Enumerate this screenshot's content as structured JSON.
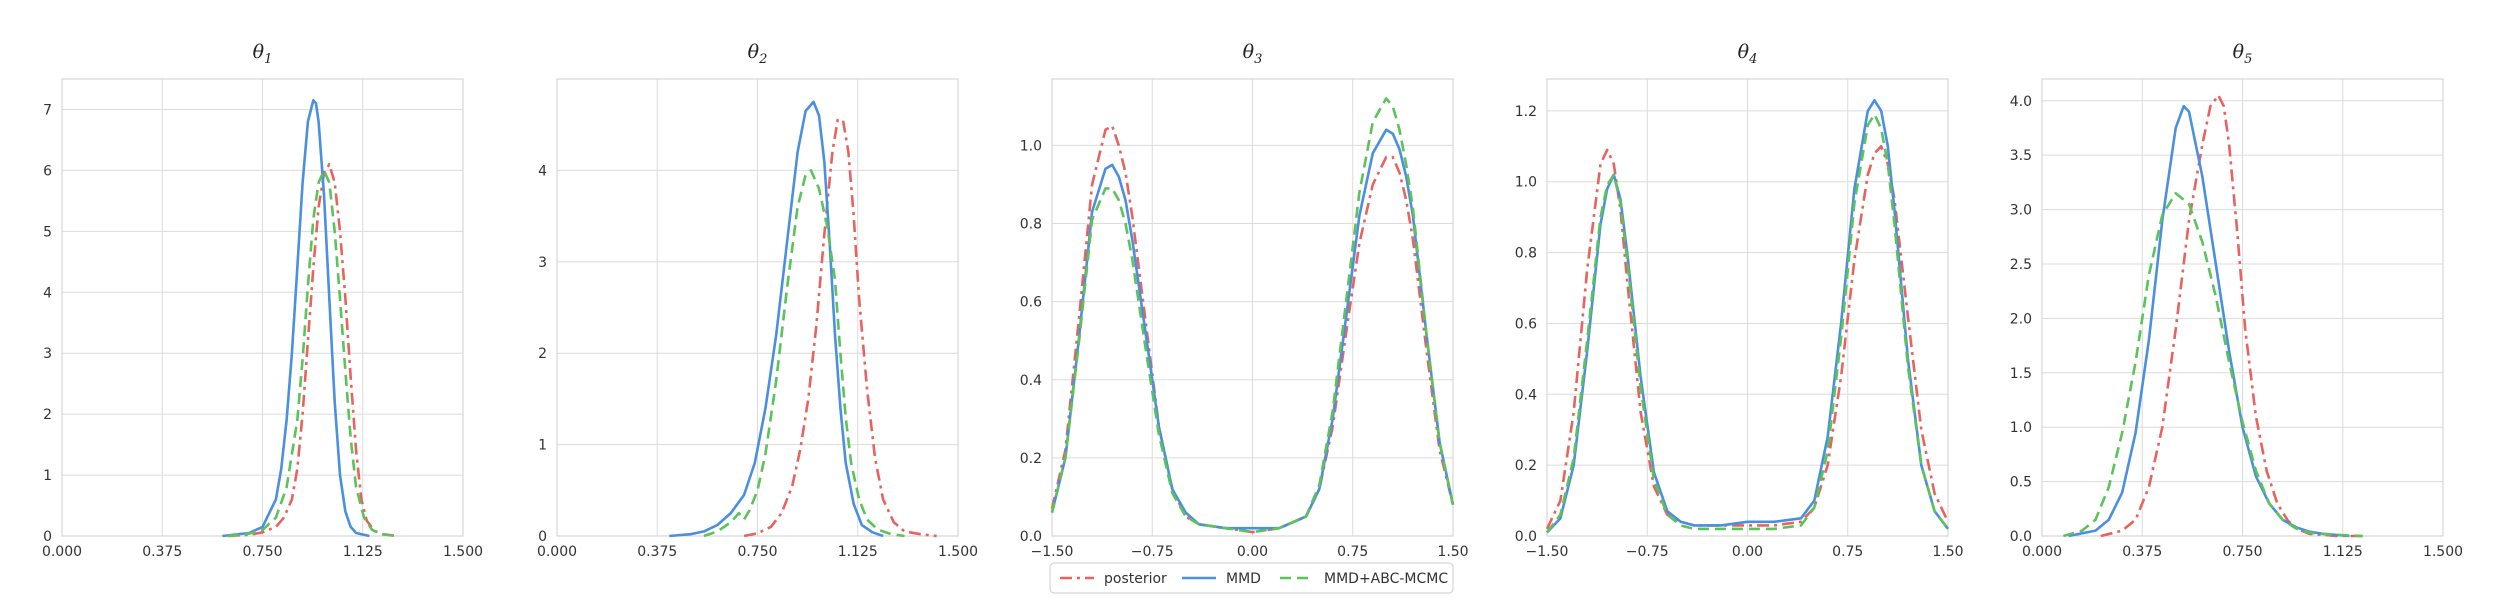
{
  "chart_data": {
    "type": "line",
    "grid": true,
    "legend": {
      "placement": "bottom-center",
      "entries": [
        {
          "name": "posterior",
          "color": "#e8635f",
          "style": "dashdot"
        },
        {
          "name": "MMD",
          "color": "#4a8fe0",
          "style": "solid"
        },
        {
          "name": "MMD+ABC-MCMC",
          "color": "#5cc25a",
          "style": "dashed"
        }
      ]
    },
    "panels": [
      {
        "title_base": "θ",
        "title_sub": "1",
        "xlim": [
          0,
          1.5
        ],
        "ylim": [
          0,
          7.5
        ],
        "xticks": [
          "0.000",
          "0.375",
          "0.750",
          "1.125",
          "1.500"
        ],
        "yticks": [
          "0",
          "1",
          "2",
          "3",
          "4",
          "5",
          "6",
          "7"
        ],
        "series": [
          {
            "x": [
              0.62,
              0.7,
              0.75,
              0.8,
              0.83,
              0.86,
              0.88,
              0.9,
              0.92,
              0.94,
              0.96,
              0.98,
              1.0,
              1.02,
              1.04,
              1.06,
              1.08,
              1.1,
              1.12,
              1.14,
              1.17,
              1.2,
              1.25
            ],
            "y": [
              0.0,
              0.02,
              0.06,
              0.15,
              0.3,
              0.6,
              1.1,
              2.0,
              3.2,
              4.4,
              5.4,
              5.95,
              6.1,
              5.8,
              5.0,
              3.9,
              2.6,
              1.4,
              0.6,
              0.25,
              0.08,
              0.03,
              0.0
            ]
          },
          {
            "x": [
              0.6,
              0.7,
              0.75,
              0.8,
              0.82,
              0.84,
              0.86,
              0.88,
              0.9,
              0.92,
              0.94,
              0.95,
              0.96,
              0.98,
              1.0,
              1.02,
              1.04,
              1.06,
              1.08,
              1.1,
              1.15
            ],
            "y": [
              0.0,
              0.05,
              0.15,
              0.6,
              1.1,
              1.9,
              3.0,
              4.4,
              5.8,
              6.8,
              7.15,
              7.1,
              6.8,
              5.6,
              3.9,
              2.2,
              1.0,
              0.4,
              0.15,
              0.05,
              0.0
            ]
          },
          {
            "x": [
              0.62,
              0.7,
              0.75,
              0.8,
              0.84,
              0.88,
              0.9,
              0.92,
              0.94,
              0.96,
              0.98,
              1.0,
              1.02,
              1.04,
              1.06,
              1.08,
              1.1,
              1.13,
              1.16,
              1.2,
              1.25
            ],
            "y": [
              0.0,
              0.04,
              0.1,
              0.3,
              0.8,
              1.9,
              2.9,
              4.1,
              5.2,
              5.8,
              6.0,
              5.8,
              5.0,
              3.9,
              2.7,
              1.6,
              0.8,
              0.3,
              0.1,
              0.03,
              0.0
            ]
          }
        ]
      },
      {
        "title_base": "θ",
        "title_sub": "2",
        "xlim": [
          0,
          1.5
        ],
        "ylim": [
          0,
          5.0
        ],
        "xticks": [
          "0.000",
          "0.375",
          "0.750",
          "1.125",
          "1.500"
        ],
        "yticks": [
          "0",
          "1",
          "2",
          "3",
          "4"
        ],
        "series": [
          {
            "x": [
              0.7,
              0.75,
              0.8,
              0.84,
              0.88,
              0.91,
              0.94,
              0.97,
              1.0,
              1.03,
              1.05,
              1.07,
              1.09,
              1.11,
              1.13,
              1.16,
              1.19,
              1.22,
              1.26,
              1.3,
              1.36,
              1.42
            ],
            "y": [
              0.0,
              0.03,
              0.1,
              0.25,
              0.55,
              0.95,
              1.5,
              2.3,
              3.3,
              4.2,
              4.55,
              4.55,
              4.2,
              3.5,
              2.6,
              1.6,
              0.85,
              0.4,
              0.15,
              0.05,
              0.02,
              0.0
            ]
          },
          {
            "x": [
              0.42,
              0.5,
              0.55,
              0.6,
              0.65,
              0.7,
              0.74,
              0.78,
              0.82,
              0.86,
              0.9,
              0.93,
              0.96,
              0.98,
              1.0,
              1.02,
              1.04,
              1.06,
              1.08,
              1.11,
              1.14,
              1.18,
              1.22
            ],
            "y": [
              0.0,
              0.02,
              0.05,
              0.12,
              0.25,
              0.45,
              0.8,
              1.4,
              2.2,
              3.2,
              4.2,
              4.65,
              4.75,
              4.6,
              4.1,
              3.2,
              2.2,
              1.4,
              0.8,
              0.35,
              0.12,
              0.04,
              0.0
            ]
          },
          {
            "x": [
              0.55,
              0.6,
              0.65,
              0.68,
              0.7,
              0.72,
              0.75,
              0.78,
              0.82,
              0.86,
              0.9,
              0.93,
              0.95,
              0.98,
              1.01,
              1.04,
              1.06,
              1.08,
              1.1,
              1.13,
              1.16,
              1.2,
              1.25,
              1.3
            ],
            "y": [
              0.0,
              0.05,
              0.15,
              0.25,
              0.18,
              0.28,
              0.5,
              0.9,
              1.7,
              2.7,
              3.6,
              3.95,
              4.0,
              3.8,
              3.4,
              2.8,
              2.0,
              1.3,
              0.8,
              0.4,
              0.18,
              0.07,
              0.02,
              0.0
            ]
          }
        ]
      },
      {
        "title_base": "θ",
        "title_sub": "3",
        "xlim": [
          -1.5,
          1.5
        ],
        "ylim": [
          0,
          1.17
        ],
        "xticks": [
          "−1.50",
          "−0.75",
          "0.00",
          "0.75",
          "1.50"
        ],
        "yticks": [
          "0.0",
          "0.2",
          "0.4",
          "0.6",
          "0.8",
          "1.0"
        ],
        "series": [
          {
            "x": [
              -1.5,
              -1.4,
              -1.3,
              -1.2,
              -1.1,
              -1.05,
              -1.0,
              -0.95,
              -0.9,
              -0.8,
              -0.7,
              -0.6,
              -0.5,
              -0.4,
              -0.2,
              0.0,
              0.2,
              0.4,
              0.5,
              0.6,
              0.7,
              0.8,
              0.9,
              1.0,
              1.05,
              1.1,
              1.15,
              1.2,
              1.3,
              1.4,
              1.5
            ],
            "y": [
              0.07,
              0.22,
              0.55,
              0.9,
              1.04,
              1.05,
              1.0,
              0.93,
              0.82,
              0.55,
              0.28,
              0.12,
              0.05,
              0.03,
              0.02,
              0.01,
              0.02,
              0.05,
              0.12,
              0.28,
              0.52,
              0.75,
              0.9,
              0.97,
              0.97,
              0.93,
              0.86,
              0.76,
              0.48,
              0.22,
              0.08
            ]
          },
          {
            "x": [
              -1.5,
              -1.4,
              -1.3,
              -1.2,
              -1.1,
              -1.05,
              -1.0,
              -0.95,
              -0.9,
              -0.8,
              -0.7,
              -0.6,
              -0.5,
              -0.4,
              -0.2,
              0.0,
              0.2,
              0.4,
              0.5,
              0.6,
              0.7,
              0.8,
              0.9,
              1.0,
              1.05,
              1.1,
              1.15,
              1.2,
              1.3,
              1.4,
              1.5
            ],
            "y": [
              0.06,
              0.2,
              0.5,
              0.83,
              0.94,
              0.95,
              0.92,
              0.86,
              0.76,
              0.52,
              0.28,
              0.12,
              0.06,
              0.03,
              0.02,
              0.02,
              0.02,
              0.05,
              0.12,
              0.3,
              0.56,
              0.82,
              0.98,
              1.04,
              1.03,
              0.99,
              0.92,
              0.82,
              0.52,
              0.24,
              0.08
            ]
          },
          {
            "x": [
              -1.5,
              -1.4,
              -1.3,
              -1.2,
              -1.1,
              -1.05,
              -1.0,
              -0.95,
              -0.9,
              -0.8,
              -0.7,
              -0.6,
              -0.5,
              -0.4,
              -0.2,
              0.0,
              0.2,
              0.4,
              0.5,
              0.6,
              0.7,
              0.8,
              0.9,
              1.0,
              1.05,
              1.1,
              1.15,
              1.2,
              1.3,
              1.4,
              1.5
            ],
            "y": [
              0.06,
              0.2,
              0.49,
              0.81,
              0.89,
              0.89,
              0.86,
              0.8,
              0.71,
              0.48,
              0.26,
              0.11,
              0.05,
              0.03,
              0.02,
              0.01,
              0.02,
              0.05,
              0.13,
              0.32,
              0.6,
              0.88,
              1.06,
              1.12,
              1.1,
              1.04,
              0.95,
              0.84,
              0.52,
              0.24,
              0.08
            ]
          }
        ]
      },
      {
        "title_base": "θ",
        "title_sub": "4",
        "xlim": [
          -1.5,
          1.5
        ],
        "ylim": [
          0,
          1.29
        ],
        "xticks": [
          "−1.50",
          "−0.75",
          "0.00",
          "0.75",
          "1.50"
        ],
        "yticks": [
          "0.0",
          "0.2",
          "0.4",
          "0.6",
          "0.8",
          "1.0",
          "1.2"
        ],
        "series": [
          {
            "x": [
              -1.5,
              -1.4,
              -1.3,
              -1.2,
              -1.1,
              -1.05,
              -1.0,
              -0.95,
              -0.9,
              -0.8,
              -0.7,
              -0.6,
              -0.5,
              -0.4,
              -0.2,
              0.0,
              0.2,
              0.4,
              0.5,
              0.6,
              0.7,
              0.8,
              0.9,
              0.95,
              1.0,
              1.05,
              1.1,
              1.2,
              1.3,
              1.4,
              1.5
            ],
            "y": [
              0.02,
              0.1,
              0.35,
              0.75,
              1.05,
              1.09,
              1.05,
              0.92,
              0.72,
              0.35,
              0.14,
              0.06,
              0.04,
              0.03,
              0.03,
              0.03,
              0.03,
              0.04,
              0.08,
              0.2,
              0.45,
              0.78,
              1.02,
              1.08,
              1.1,
              1.05,
              0.95,
              0.62,
              0.3,
              0.12,
              0.04
            ]
          },
          {
            "x": [
              -1.5,
              -1.4,
              -1.3,
              -1.2,
              -1.1,
              -1.05,
              -1.0,
              -0.95,
              -0.9,
              -0.8,
              -0.7,
              -0.6,
              -0.5,
              -0.4,
              -0.2,
              0.0,
              0.2,
              0.4,
              0.5,
              0.6,
              0.7,
              0.8,
              0.9,
              0.95,
              1.0,
              1.05,
              1.1,
              1.2,
              1.3,
              1.4,
              1.5
            ],
            "y": [
              0.01,
              0.05,
              0.2,
              0.52,
              0.88,
              0.98,
              1.02,
              0.95,
              0.8,
              0.45,
              0.18,
              0.07,
              0.04,
              0.03,
              0.03,
              0.04,
              0.04,
              0.05,
              0.1,
              0.28,
              0.6,
              0.98,
              1.2,
              1.23,
              1.2,
              1.1,
              0.92,
              0.5,
              0.2,
              0.07,
              0.02
            ]
          },
          {
            "x": [
              -1.5,
              -1.4,
              -1.3,
              -1.2,
              -1.1,
              -1.05,
              -1.0,
              -0.95,
              -0.9,
              -0.8,
              -0.7,
              -0.6,
              -0.5,
              -0.4,
              -0.2,
              0.0,
              0.2,
              0.4,
              0.5,
              0.6,
              0.7,
              0.8,
              0.9,
              0.95,
              1.0,
              1.05,
              1.1,
              1.2,
              1.3,
              1.4,
              1.5
            ],
            "y": [
              0.01,
              0.06,
              0.22,
              0.55,
              0.9,
              0.99,
              1.02,
              0.94,
              0.78,
              0.42,
              0.16,
              0.06,
              0.03,
              0.02,
              0.02,
              0.02,
              0.02,
              0.03,
              0.08,
              0.24,
              0.56,
              0.94,
              1.16,
              1.19,
              1.15,
              1.05,
              0.88,
              0.48,
              0.2,
              0.07,
              0.02
            ]
          }
        ]
      },
      {
        "title_base": "θ",
        "title_sub": "5",
        "xlim": [
          0,
          1.5
        ],
        "ylim": [
          0,
          4.2
        ],
        "xticks": [
          "0.000",
          "0.375",
          "0.750",
          "1.125",
          "1.500"
        ],
        "yticks": [
          "0.0",
          "0.5",
          "1.0",
          "1.5",
          "2.0",
          "2.5",
          "3.0",
          "3.5",
          "4.0"
        ],
        "series": [
          {
            "x": [
              0.22,
              0.3,
              0.35,
              0.4,
              0.45,
              0.5,
              0.55,
              0.6,
              0.63,
              0.66,
              0.68,
              0.7,
              0.73,
              0.76,
              0.8,
              0.84,
              0.88,
              0.92,
              0.96,
              1.0,
              1.1,
              1.2
            ],
            "y": [
              0.0,
              0.05,
              0.15,
              0.45,
              1.0,
              1.9,
              2.9,
              3.6,
              3.95,
              4.05,
              3.95,
              3.6,
              2.8,
              1.9,
              1.1,
              0.6,
              0.3,
              0.14,
              0.06,
              0.02,
              0.0,
              0.0
            ]
          },
          {
            "x": [
              0.1,
              0.2,
              0.25,
              0.3,
              0.35,
              0.4,
              0.45,
              0.5,
              0.53,
              0.55,
              0.6,
              0.65,
              0.7,
              0.75,
              0.8,
              0.85,
              0.9,
              0.95,
              1.0,
              1.05,
              1.15
            ],
            "y": [
              0.0,
              0.05,
              0.15,
              0.4,
              0.95,
              1.8,
              2.9,
              3.75,
              3.95,
              3.9,
              3.3,
              2.5,
              1.7,
              1.0,
              0.55,
              0.3,
              0.15,
              0.08,
              0.04,
              0.02,
              0.0
            ]
          },
          {
            "x": [
              0.08,
              0.15,
              0.2,
              0.25,
              0.3,
              0.35,
              0.4,
              0.45,
              0.5,
              0.55,
              0.6,
              0.65,
              0.7,
              0.75,
              0.8,
              0.85,
              0.9,
              0.95,
              1.0,
              1.1,
              1.2
            ],
            "y": [
              0.0,
              0.05,
              0.15,
              0.45,
              0.95,
              1.6,
              2.4,
              2.95,
              3.15,
              3.05,
              2.7,
              2.2,
              1.6,
              1.05,
              0.6,
              0.3,
              0.15,
              0.07,
              0.03,
              0.01,
              0.0
            ]
          }
        ]
      }
    ]
  }
}
